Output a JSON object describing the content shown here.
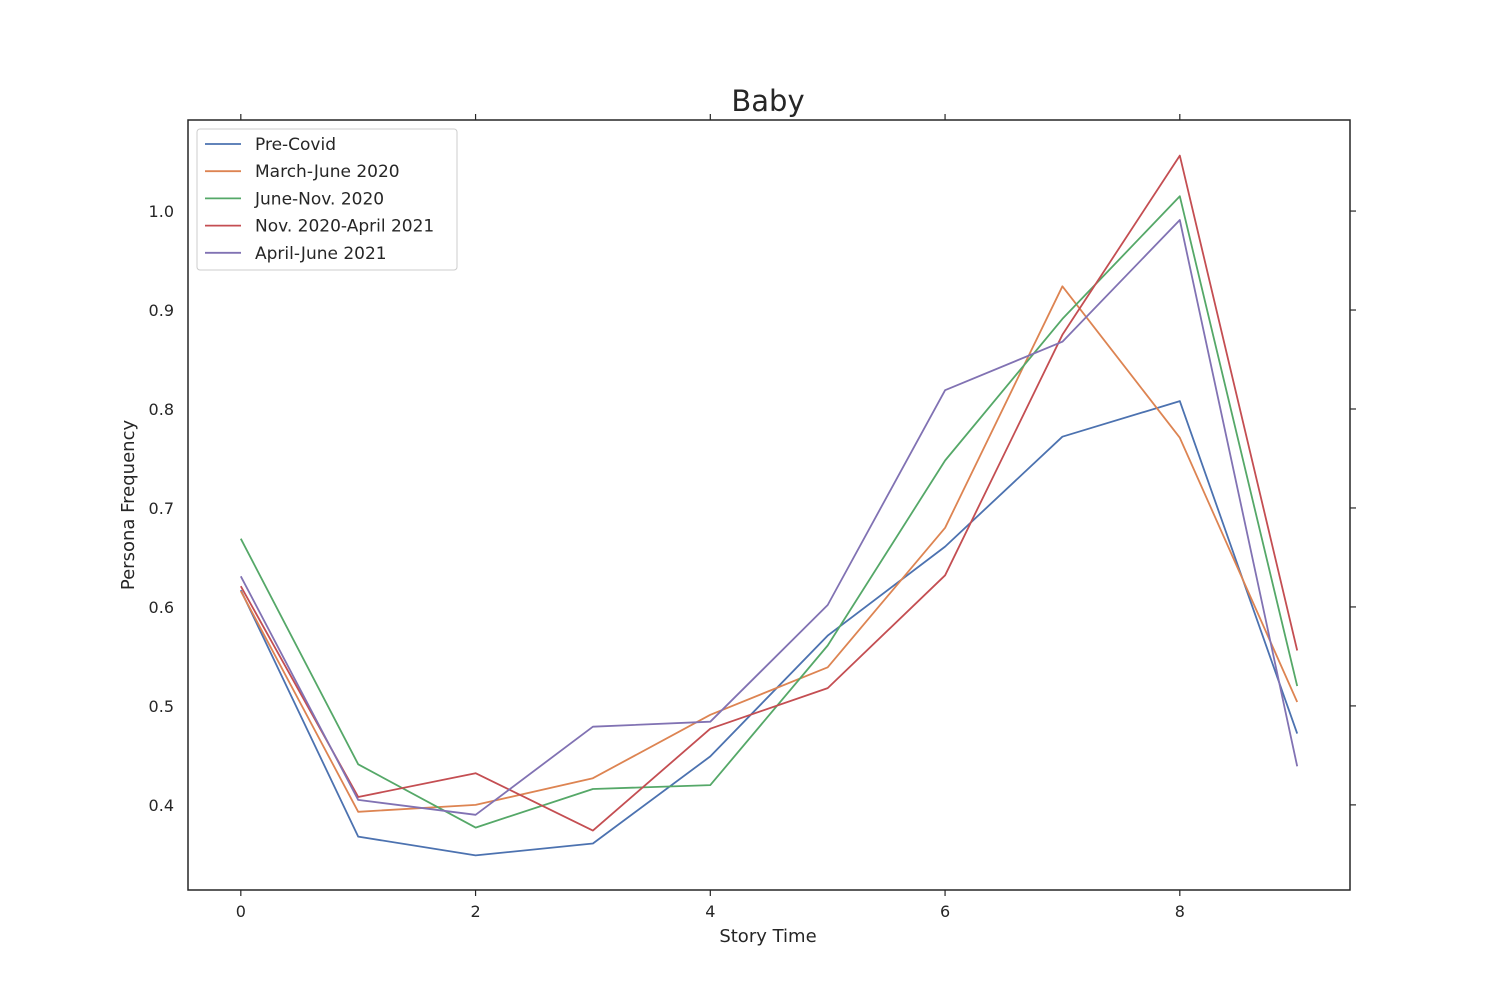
{
  "chart_data": {
    "type": "line",
    "title": "Baby",
    "xlabel": "Story Time",
    "ylabel": "Persona Frequency",
    "xlim": [
      -0.45,
      9.45
    ],
    "ylim": [
      0.314,
      1.092
    ],
    "xticks": [
      0,
      2,
      4,
      6,
      8
    ],
    "yticks": [
      0.4,
      0.5,
      0.6,
      0.7,
      0.8,
      0.9,
      1.0
    ],
    "grid": false,
    "legend_position": "upper-left",
    "x": [
      0,
      1,
      2,
      3,
      4,
      5,
      6,
      7,
      8,
      9
    ],
    "series": [
      {
        "name": "Pre-Covid",
        "color": "#4c72b0",
        "values": [
          0.617,
          0.368,
          0.349,
          0.361,
          0.449,
          0.571,
          0.661,
          0.772,
          0.808,
          0.472
        ]
      },
      {
        "name": "March-June 2020",
        "color": "#dd8452",
        "values": [
          0.616,
          0.393,
          0.4,
          0.427,
          0.491,
          0.539,
          0.68,
          0.924,
          0.771,
          0.504
        ]
      },
      {
        "name": "June-Nov. 2020",
        "color": "#55a868",
        "values": [
          0.669,
          0.441,
          0.377,
          0.416,
          0.42,
          0.561,
          0.748,
          0.891,
          1.015,
          0.52
        ]
      },
      {
        "name": "Nov. 2020-April 2021",
        "color": "#c44e52",
        "values": [
          0.621,
          0.408,
          0.432,
          0.374,
          0.477,
          0.518,
          0.632,
          0.875,
          1.056,
          0.556
        ]
      },
      {
        "name": "April-June 2021",
        "color": "#8172b3",
        "values": [
          0.631,
          0.405,
          0.39,
          0.479,
          0.484,
          0.602,
          0.819,
          0.868,
          0.991,
          0.439
        ]
      }
    ]
  }
}
